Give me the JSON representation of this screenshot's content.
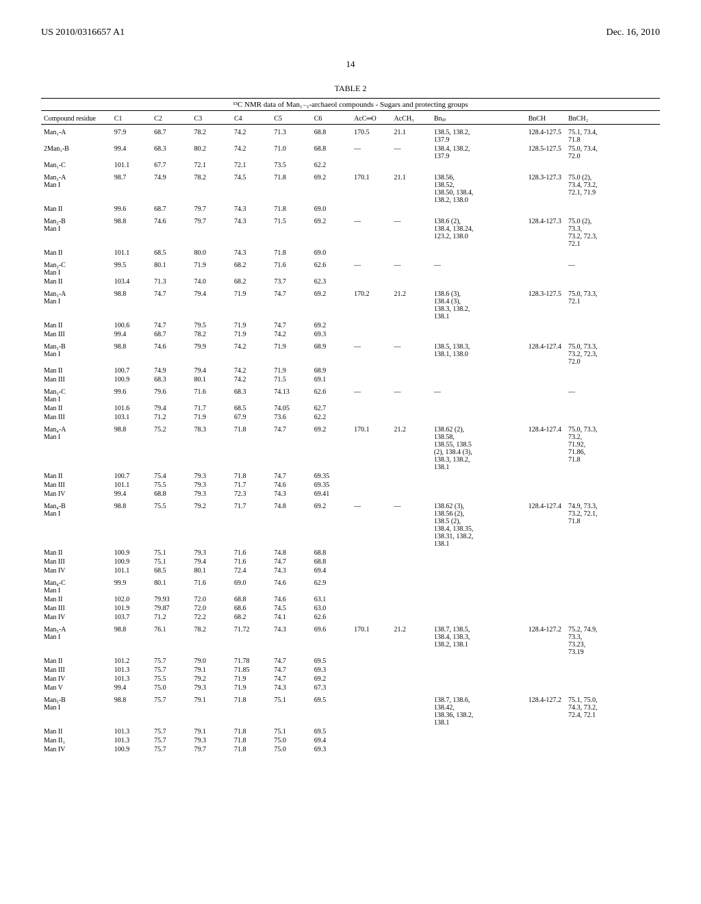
{
  "header": {
    "left": "US 2010/0316657 A1",
    "right": "Dec. 16, 2010"
  },
  "pageNumber": "14",
  "table": {
    "label": "TABLE 2",
    "caption": "¹³C NMR data of Man₁₋₅-archaeol compounds - Sugars and protecting groups",
    "columns": [
      "Compound residue",
      "C1",
      "C2",
      "C3",
      "C4",
      "C5",
      "C6",
      "AcC═O",
      "AcCH₃",
      "Bnᵢₚ",
      "BnCH",
      "BnCH₂"
    ],
    "rows": [
      {
        "group": true,
        "cells": [
          "Man₁-A",
          "97.9",
          "68.7",
          "78.2",
          "74.2",
          "71.3",
          "68.8",
          "170.5",
          "21.1",
          "138.5, 138.2,\n137.9",
          "128.4-127.5",
          "75.1, 73.4,\n71.8"
        ]
      },
      {
        "cells": [
          "2Man₁-B",
          "99.4",
          "68.3",
          "80.2",
          "74.2",
          "71.0",
          "68.8",
          "—",
          "—",
          "138.4, 138.2,\n137.9",
          "128.5-127.5",
          "75.0, 73.4,\n72.0"
        ]
      },
      {
        "cells": [
          "Man₁-C",
          "101.1",
          "67.7",
          "72.1",
          "72.1",
          "73.5",
          "62.2",
          "",
          "",
          "",
          "",
          ""
        ]
      },
      {
        "group": true,
        "cells": [
          "Man₂-A\nMan I",
          "98.7",
          "74.9",
          "78.2",
          "74.5",
          "71.8",
          "69.2",
          "170.1",
          "21.1",
          "138.56,\n138.52,\n138.50, 138.4,\n138.2, 138.0",
          "128.3-127.3",
          "75.0 (2),\n73.4, 73.2,\n72.1, 71.9"
        ]
      },
      {
        "cells": [
          "Man II",
          "99.6",
          "68.7",
          "79.7",
          "74.3",
          "71.8",
          "69.0",
          "",
          "",
          "",
          "",
          ""
        ]
      },
      {
        "group": true,
        "cells": [
          "Man₂-B\nMan I",
          "98.8",
          "74.6",
          "79.7",
          "74.3",
          "71.5",
          "69.2",
          "—",
          "—",
          "138.6 (2),\n138.4, 138.24,\n123.2, 138.0",
          "128.4-127.3",
          "75.0 (2),\n73.3,\n73.2, 72.3,\n72.1"
        ]
      },
      {
        "cells": [
          "Man II",
          "101.1",
          "68.5",
          "80.0",
          "74.3",
          "71.8",
          "69.0",
          "",
          "",
          "",
          "",
          ""
        ]
      },
      {
        "group": true,
        "cells": [
          "Man₂-C\nMan I",
          "99.5",
          "80.1",
          "71.9",
          "68.2",
          "71.6",
          "62.6",
          "—",
          "—",
          "—",
          "",
          "—"
        ]
      },
      {
        "cells": [
          "Man II",
          "103.4",
          "71.3",
          "74.0",
          "68.2",
          "73.7",
          "62.3",
          "",
          "",
          "",
          "",
          ""
        ]
      },
      {
        "group": true,
        "cells": [
          "Man₃-A\nMan I",
          "98.8",
          "74.7",
          "79.4",
          "71.9",
          "74.7",
          "69.2",
          "170.2",
          "21.2",
          "138.6 (3),\n138.4 (3),\n138.3, 138.2,\n138.1",
          "128.3-127.5",
          "75.0, 73.3,\n72.1"
        ]
      },
      {
        "cells": [
          "Man II",
          "100.6",
          "74.7",
          "79.5",
          "71.9",
          "74.7",
          "69.2",
          "",
          "",
          "",
          "",
          ""
        ]
      },
      {
        "cells": [
          "Man III",
          "99.4",
          "68.7",
          "78.2",
          "71.9",
          "74.2",
          "69.3",
          "",
          "",
          "",
          "",
          ""
        ]
      },
      {
        "group": true,
        "cells": [
          "Man₃-B\nMan I",
          "98.8",
          "74.6",
          "79.9",
          "74.2",
          "71.9",
          "68.9",
          "—",
          "—",
          "138.5, 138.3,\n138.1, 138.0",
          "128.4-127.4",
          "75.0, 73.3,\n73.2, 72.3,\n72.0"
        ]
      },
      {
        "cells": [
          "Man II",
          "100.7",
          "74.9",
          "79.4",
          "74.2",
          "71.9",
          "68.9",
          "",
          "",
          "",
          "",
          ""
        ]
      },
      {
        "cells": [
          "Man III",
          "100.9",
          "68.3",
          "80.1",
          "74.2",
          "71.5",
          "69.1",
          "",
          "",
          "",
          "",
          ""
        ]
      },
      {
        "group": true,
        "cells": [
          "Man₃-C\nMan I",
          "99.6",
          "79.6",
          "71.6",
          "68.3",
          "74.13",
          "62.6",
          "—",
          "—",
          "—",
          "",
          "—"
        ]
      },
      {
        "cells": [
          "Man II",
          "101.6",
          "79.4",
          "71.7",
          "68.5",
          "74.05",
          "62.7",
          "",
          "",
          "",
          "",
          ""
        ]
      },
      {
        "cells": [
          "Man III",
          "103.1",
          "71.2",
          "71.9",
          "67.9",
          "73.6",
          "62.2",
          "",
          "",
          "",
          "",
          ""
        ]
      },
      {
        "group": true,
        "cells": [
          "Man₄-A\nMan I",
          "98.8",
          "75.2",
          "78.3",
          "71.8",
          "74.7",
          "69.2",
          "170.1",
          "21.2",
          "138.62 (2),\n138.58,\n138.55, 138.5\n(2), 138.4 (3),\n138.3, 138.2,\n138.1",
          "128.4-127.4",
          "75.0, 73.3,\n73.2,\n71.92,\n71.86,\n71.8"
        ]
      },
      {
        "cells": [
          "Man II",
          "100.7",
          "75.4",
          "79.3",
          "71.8",
          "74.7",
          "69.35",
          "",
          "",
          "",
          "",
          ""
        ]
      },
      {
        "cells": [
          "Man III",
          "101.1",
          "75.5",
          "79.3",
          "71.7",
          "74.6",
          "69.35",
          "",
          "",
          "",
          "",
          ""
        ]
      },
      {
        "cells": [
          "Man IV",
          "99.4",
          "68.8",
          "79.3",
          "72.3",
          "74.3",
          "69.41",
          "",
          "",
          "",
          "",
          ""
        ]
      },
      {
        "group": true,
        "cells": [
          "Man₄-B\nMan I",
          "98.8",
          "75.5",
          "79.2",
          "71.7",
          "74.8",
          "69.2",
          "—",
          "—",
          "138.62 (3),\n138.56 (2),\n138.5 (2),\n138.4, 138.35,\n138.31, 138.2,\n138.1",
          "128.4-127.4",
          "74.9, 73.3,\n73.2, 72.1,\n71.8"
        ]
      },
      {
        "cells": [
          "Man II",
          "100.9",
          "75.1",
          "79.3",
          "71.6",
          "74.8",
          "68.8",
          "",
          "",
          "",
          "",
          ""
        ]
      },
      {
        "cells": [
          "Man III",
          "100.9",
          "75.1",
          "79.4",
          "71.6",
          "74.7",
          "68.8",
          "",
          "",
          "",
          "",
          ""
        ]
      },
      {
        "cells": [
          "Man IV",
          "101.1",
          "68.5",
          "80.1",
          "72.4",
          "74.3",
          "69.4",
          "",
          "",
          "",
          "",
          ""
        ]
      },
      {
        "group": true,
        "cells": [
          "Man₄-C\nMan I",
          "99.9",
          "80.1",
          "71.6",
          "69.0",
          "74.6",
          "62.9",
          "",
          "",
          "",
          "",
          ""
        ]
      },
      {
        "cells": [
          "Man II",
          "102.0",
          "79.93",
          "72.0",
          "68.8",
          "74.6",
          "63.1",
          "",
          "",
          "",
          "",
          ""
        ]
      },
      {
        "cells": [
          "Man III",
          "101.9",
          "79.87",
          "72.0",
          "68.6",
          "74.5",
          "63.0",
          "",
          "",
          "",
          "",
          ""
        ]
      },
      {
        "cells": [
          "Man IV",
          "103.7",
          "71.2",
          "72.2",
          "68.2",
          "74.1",
          "62.6",
          "",
          "",
          "",
          "",
          ""
        ]
      },
      {
        "group": true,
        "cells": [
          "Man₅-A\nMan I",
          "98.8",
          "76.1",
          "78.2",
          "71.72",
          "74.3",
          "69.6",
          "170.1",
          "21.2",
          "138.7, 138.5,\n138.4, 138.3,\n138.2, 138.1",
          "128.4-127.2",
          "75.2, 74.9,\n73.3,\n73.23,\n73.19"
        ]
      },
      {
        "cells": [
          "Man II",
          "101.2",
          "75.7",
          "79.0",
          "71.78",
          "74.7",
          "69.5",
          "",
          "",
          "",
          "",
          ""
        ]
      },
      {
        "cells": [
          "Man III",
          "101.3",
          "75.7",
          "79.1",
          "71.85",
          "74.7",
          "69.3",
          "",
          "",
          "",
          "",
          ""
        ]
      },
      {
        "cells": [
          "Man IV",
          "101.3",
          "75.5",
          "79.2",
          "71.9",
          "74.7",
          "69.2",
          "",
          "",
          "",
          "",
          ""
        ]
      },
      {
        "cells": [
          "Man V",
          "99.4",
          "75.0",
          "79.3",
          "71.9",
          "74.3",
          "67.3",
          "",
          "",
          "",
          "",
          ""
        ]
      },
      {
        "group": true,
        "cells": [
          "Man₅-B\nMan I",
          "98.8",
          "75.7",
          "79.1",
          "71.8",
          "75.1",
          "69.5",
          "",
          "",
          "138.7, 138.6,\n138.42,\n138.36, 138.2,\n138.1",
          "128.4-127.2",
          "75.1, 75.0,\n74.3, 73.2,\n72.4, 72.1"
        ]
      },
      {
        "cells": [
          "Man II",
          "101.3",
          "75.7",
          "79.1",
          "71.8",
          "75.1",
          "69.5",
          "",
          "",
          "",
          "",
          ""
        ]
      },
      {
        "cells": [
          "Man II₁",
          "101.3",
          "75.7",
          "79.3",
          "71.8",
          "75.0",
          "69.4",
          "",
          "",
          "",
          "",
          ""
        ]
      },
      {
        "cells": [
          "Man IV",
          "100.9",
          "75.7",
          "79.7",
          "71.8",
          "75.0",
          "69.3",
          "",
          "",
          "",
          "",
          ""
        ]
      }
    ]
  }
}
